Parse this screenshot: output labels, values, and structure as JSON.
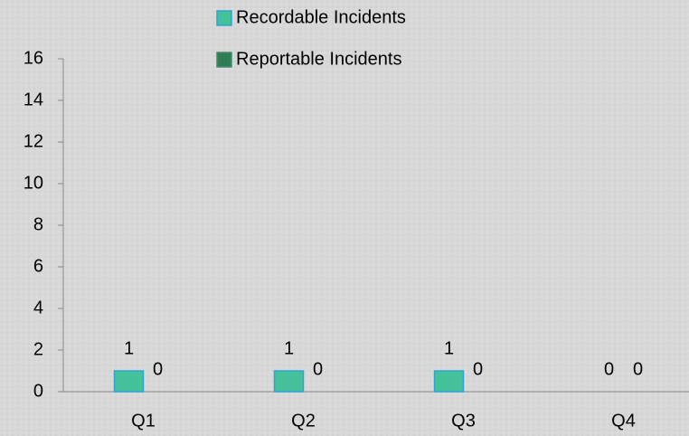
{
  "chart_data": {
    "type": "bar",
    "categories": [
      "Q1",
      "Q2",
      "Q3",
      "Q4"
    ],
    "series": [
      {
        "name": "Recordable Incidents",
        "color": "#45c29a",
        "values": [
          1,
          1,
          1,
          0
        ]
      },
      {
        "name": "Reportable Incidents",
        "color": "#2e7d55",
        "values": [
          0,
          0,
          0,
          0
        ]
      }
    ],
    "ylim": [
      0,
      16
    ],
    "yticks": [
      0,
      2,
      4,
      6,
      8,
      10,
      12,
      14,
      16
    ],
    "legend": "top"
  }
}
